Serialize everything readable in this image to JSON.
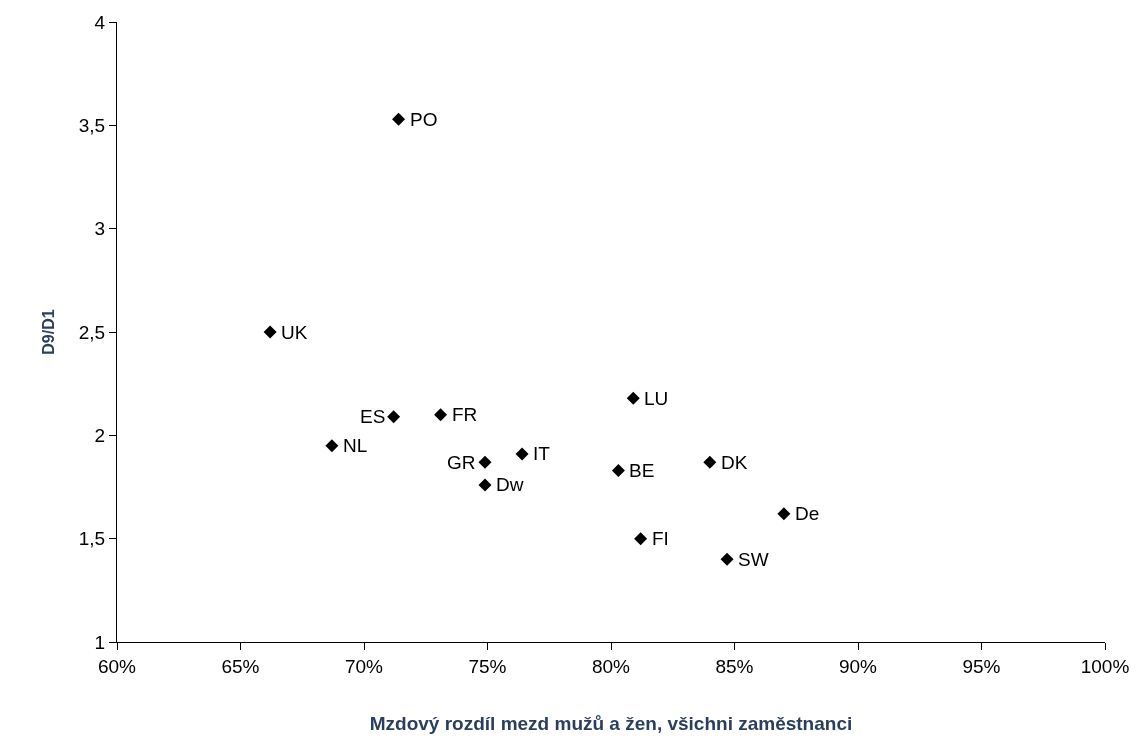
{
  "chart_data": {
    "type": "scatter",
    "xlabel": "Mzdový rozdíl mezd mužů a žen, všichni zaměstnanci",
    "ylabel": "D9/D1",
    "x": [
      71.4,
      66.2,
      71.2,
      73.1,
      68.7,
      74.9,
      74.9,
      76.4,
      80.3,
      80.9,
      81.2,
      84.0,
      84.7,
      87.0
    ],
    "values": [
      3.53,
      2.5,
      2.09,
      2.1,
      1.95,
      1.87,
      1.76,
      1.91,
      1.83,
      2.18,
      1.5,
      1.87,
      1.4,
      1.62
    ],
    "color": "#000000",
    "marker": "diamond",
    "grid": false,
    "legend": false,
    "xlim": [
      60,
      100
    ],
    "xticks": [
      {
        "value": 60,
        "label": "60%"
      },
      {
        "value": 65,
        "label": "65%"
      },
      {
        "value": 70,
        "label": "70%"
      },
      {
        "value": 75,
        "label": "75%"
      },
      {
        "value": 80,
        "label": "80%"
      },
      {
        "value": 85,
        "label": "85%"
      },
      {
        "value": 90,
        "label": "90%"
      },
      {
        "value": 95,
        "label": "95%"
      },
      {
        "value": 100,
        "label": "100%"
      }
    ],
    "ylim": [
      1,
      4
    ],
    "yticks": [
      1,
      {
        "value": 1.5,
        "label": "1,5"
      },
      2,
      {
        "value": 2.5,
        "label": "2,5"
      },
      3,
      {
        "value": 3.5,
        "label": "3,5"
      },
      4
    ],
    "annotations": [
      {
        "text": "PO",
        "x": 71.4,
        "y": 3.53
      },
      {
        "text": "UK",
        "x": 66.2,
        "y": 2.5
      },
      {
        "text": "ES",
        "x": 71.2,
        "y": 2.09
      },
      {
        "text": "FR",
        "x": 73.1,
        "y": 2.1
      },
      {
        "text": "NL",
        "x": 68.7,
        "y": 1.95
      },
      {
        "text": "GR",
        "x": 74.9,
        "y": 1.87
      },
      {
        "text": "Dw",
        "x": 74.9,
        "y": 1.76
      },
      {
        "text": "IT",
        "x": 76.4,
        "y": 1.91
      },
      {
        "text": "BE",
        "x": 80.3,
        "y": 1.83
      },
      {
        "text": "LU",
        "x": 80.9,
        "y": 2.18
      },
      {
        "text": "FI",
        "x": 81.2,
        "y": 1.5
      },
      {
        "text": "DK",
        "x": 84.0,
        "y": 1.87
      },
      {
        "text": "SW",
        "x": 84.7,
        "y": 1.4
      },
      {
        "text": "De",
        "x": 87.0,
        "y": 1.62
      }
    ]
  }
}
